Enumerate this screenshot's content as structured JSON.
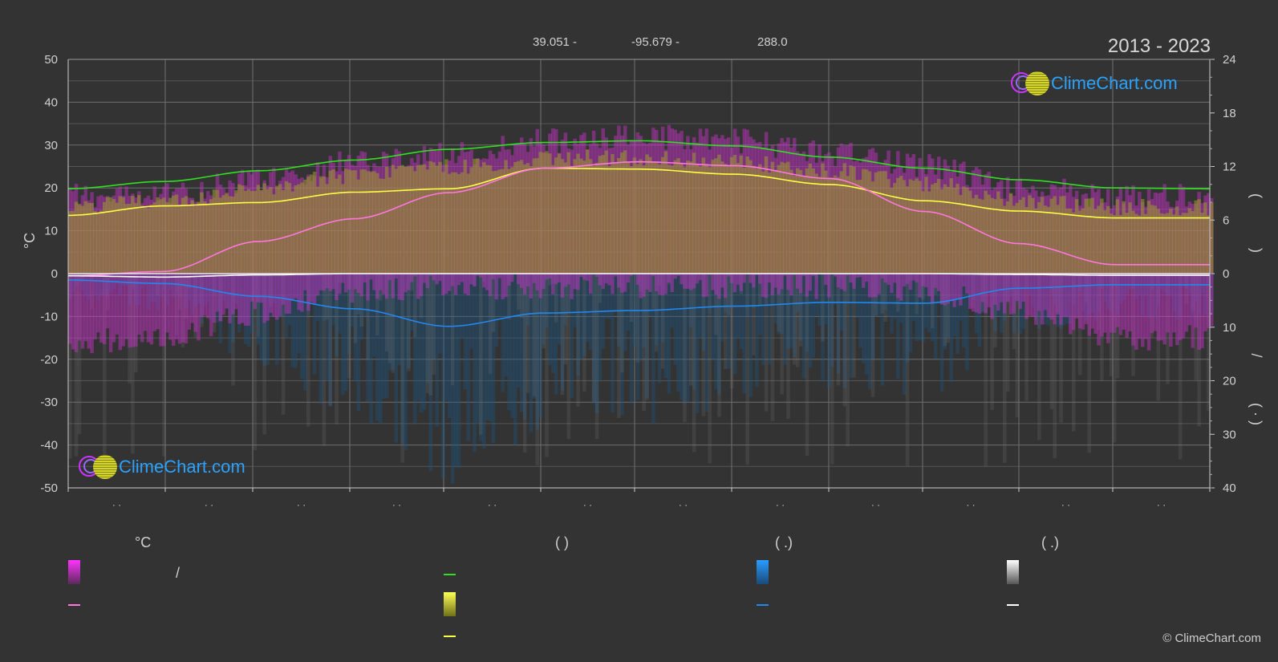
{
  "header": {
    "lat": "39.051 -",
    "lon": "-95.679 -",
    "elev": "288.0",
    "range": "2013 - 2023"
  },
  "logo_text": "ClimeChart.com",
  "copyright": "© ClimeChart.com",
  "legend": {
    "col1_title": "°C",
    "col1_slash": "/",
    "col2_title": "(          )",
    "col3_title": "(    .)",
    "col4_title": "(    .)"
  },
  "colors": {
    "background": "#333333",
    "grid": "#6a6a6a",
    "max_temp_line": "#33dd22",
    "mean_max_line": "#ffff44",
    "mean_line": "#ff77dd",
    "precip_line": "#2288ee",
    "snow_line": "#ffffff",
    "temp_band": "#ff33ff",
    "sunshine_band": "#cccc33",
    "precip_band": "#1a6db0"
  },
  "chart_data": {
    "type": "line",
    "y_left": {
      "label": "°C",
      "ylim": [
        -50,
        50
      ],
      "ticks": [
        "50",
        "40",
        "30",
        "20",
        "10",
        "0",
        "-10",
        "-20",
        "-30",
        "-40",
        "-50"
      ]
    },
    "y_right_top": {
      "ylim": [
        0,
        24
      ],
      "ticks": [
        "24",
        "18",
        "12",
        "6",
        "0"
      ]
    },
    "y_right_bottom": {
      "ylim": [
        0,
        40
      ],
      "ticks": [
        "10",
        "20",
        "30",
        "40"
      ]
    },
    "right_axis_marks": [
      "(",
      ")",
      "/",
      "(  ·  )"
    ],
    "x_tick_labels": [
      "· ·",
      "· ·",
      "· ·",
      "· ·",
      "· ·",
      "· ·",
      "· ·",
      "· ·",
      "· ·",
      "· ·",
      "· ·",
      "· ·"
    ],
    "month_position": [
      0,
      1,
      2,
      3,
      4,
      5,
      6,
      7,
      8,
      9,
      10,
      11,
      12
    ],
    "grid": true,
    "series": [
      {
        "key": "max_temp",
        "color": "#33dd22",
        "values": [
          19.8,
          21.5,
          24.0,
          26.5,
          29.0,
          30.6,
          31.0,
          29.8,
          27.2,
          24.6,
          21.9,
          20.0,
          19.8
        ]
      },
      {
        "key": "mean_max",
        "color": "#ffff44",
        "values": [
          13.6,
          15.8,
          16.6,
          19.0,
          19.8,
          24.6,
          24.4,
          23.2,
          20.8,
          17.0,
          14.6,
          13.0,
          13.0
        ]
      },
      {
        "key": "mean",
        "color": "#ff77dd",
        "values": [
          -0.5,
          0.5,
          7.5,
          12.8,
          18.9,
          24.6,
          26.1,
          25.2,
          22.2,
          14.5,
          7.0,
          2.1,
          2.1
        ]
      },
      {
        "key": "precip_cm",
        "color": "#2288ee",
        "values": [
          -1.5,
          -2.3,
          -5.3,
          -8.2,
          -12.3,
          -9.2,
          -8.6,
          -7.6,
          -6.7,
          -6.9,
          -3.4,
          -2.6,
          -2.6
        ]
      },
      {
        "key": "snow",
        "color": "#ffffff",
        "values": [
          -0.5,
          -0.8,
          -0.3,
          0,
          0,
          0,
          0,
          0,
          0,
          0,
          -0.2,
          -0.4,
          -0.4
        ]
      }
    ],
    "band_temp_top": [
      18,
      18.5,
      22,
      26,
      28,
      31,
      32,
      31,
      28,
      25,
      20,
      18,
      18
    ],
    "band_temp_bottom": [
      -13,
      -12,
      -6,
      -1,
      0,
      0,
      0,
      0,
      0,
      -1,
      -6,
      -12,
      -12
    ],
    "band_sun_top": [
      17.5,
      19,
      22,
      25,
      27,
      29,
      29,
      28,
      26,
      23,
      19,
      17.5,
      17.5
    ]
  }
}
